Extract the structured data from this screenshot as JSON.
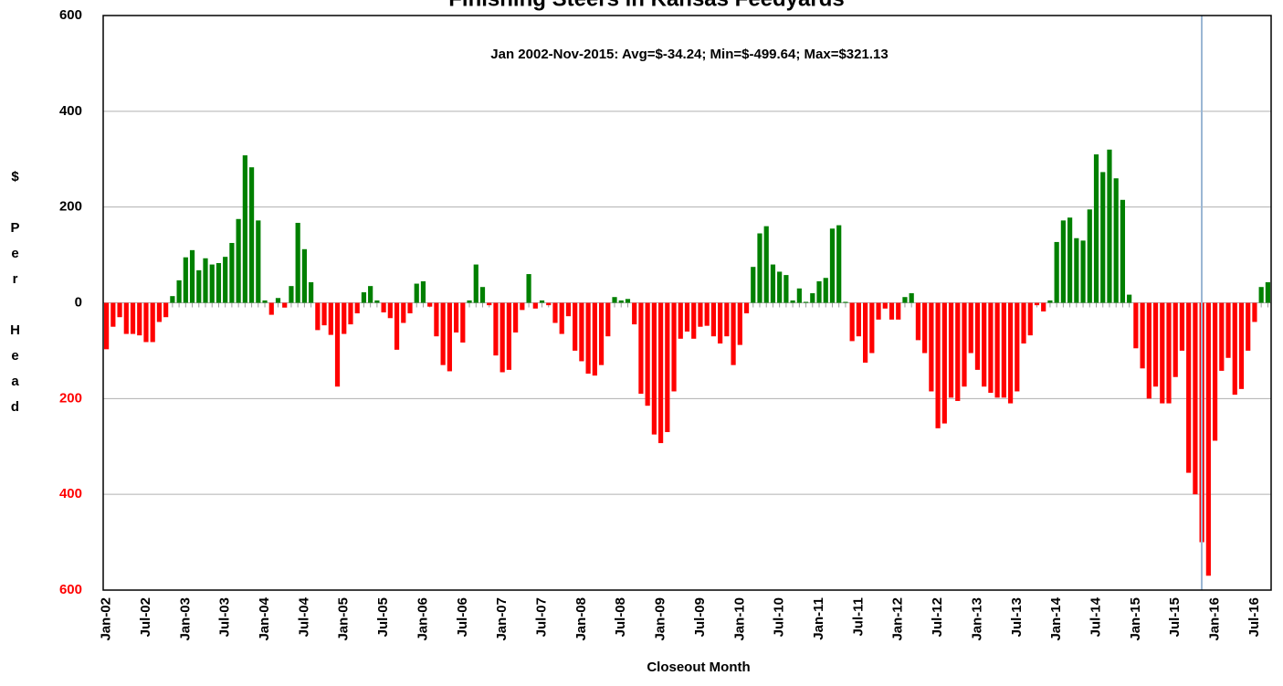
{
  "chart_data": {
    "type": "bar",
    "title": "Finishing Steers in Kansas Feedyards",
    "annotation": "Jan 2002-Nov-2015:  Avg=$-34.24; Min=$-499.64; Max=$321.13",
    "y_label": "$ Per Head",
    "x_label": "Closeout Month",
    "categories": [
      "Jan-02",
      null,
      null,
      null,
      null,
      null,
      "Jul-02",
      null,
      null,
      null,
      null,
      null,
      "Jan-03",
      null,
      null,
      null,
      null,
      null,
      "Jul-03",
      null,
      null,
      null,
      null,
      null,
      "Jan-04",
      null,
      null,
      null,
      null,
      null,
      "Jul-04",
      null,
      null,
      null,
      null,
      null,
      "Jan-05",
      null,
      null,
      null,
      null,
      null,
      "Jul-05",
      null,
      null,
      null,
      null,
      null,
      "Jan-06",
      null,
      null,
      null,
      null,
      null,
      "Jul-06",
      null,
      null,
      null,
      null,
      null,
      "Jan-07",
      null,
      null,
      null,
      null,
      null,
      "Jul-07",
      null,
      null,
      null,
      null,
      null,
      "Jan-08",
      null,
      null,
      null,
      null,
      null,
      "Jul-08",
      null,
      null,
      null,
      null,
      null,
      "Jan-09",
      null,
      null,
      null,
      null,
      null,
      "Jul-09",
      null,
      null,
      null,
      null,
      null,
      "Jan-10",
      null,
      null,
      null,
      null,
      null,
      "Jul-10",
      null,
      null,
      null,
      null,
      null,
      "Jan-11",
      null,
      null,
      null,
      null,
      null,
      "Jul-11",
      null,
      null,
      null,
      null,
      null,
      "Jan-12",
      null,
      null,
      null,
      null,
      null,
      "Jul-12",
      null,
      null,
      null,
      null,
      null,
      "Jan-13",
      null,
      null,
      null,
      null,
      null,
      "Jul-13",
      null,
      null,
      null,
      null,
      null,
      "Jan-14",
      null,
      null,
      null,
      null,
      null,
      "Jul-14",
      null,
      null,
      null,
      null,
      null,
      "Jan-15",
      null,
      null,
      null,
      null,
      null,
      "Jul-15",
      null,
      null,
      null,
      null,
      null,
      "Jan-16",
      null,
      null,
      null,
      null,
      null,
      "Jul-16",
      null,
      null
    ],
    "values": [
      -97,
      -50,
      -30,
      -65,
      -65,
      -68,
      -82,
      -82,
      -40,
      -30,
      14,
      47,
      95,
      110,
      68,
      93,
      80,
      83,
      96,
      125,
      175,
      308,
      283,
      172,
      5,
      -25,
      10,
      -10,
      35,
      167,
      112,
      43,
      -57,
      -47,
      -67,
      -175,
      -65,
      -45,
      -22,
      22,
      35,
      5,
      -20,
      -32,
      -98,
      -42,
      -22,
      40,
      45,
      -8,
      -70,
      -130,
      -143,
      -62,
      -83,
      5,
      80,
      33,
      -5,
      -110,
      -145,
      -140,
      -62,
      -15,
      60,
      -12,
      5,
      -5,
      -42,
      -65,
      -28,
      -100,
      -122,
      -148,
      -152,
      -130,
      -70,
      12,
      5,
      8,
      -45,
      -190,
      -215,
      -275,
      -293,
      -270,
      -185,
      -75,
      -60,
      -75,
      -50,
      -48,
      -70,
      -85,
      -70,
      -130,
      -88,
      -22,
      75,
      145,
      160,
      80,
      65,
      58,
      5,
      30,
      2,
      20,
      45,
      52,
      155,
      162,
      2,
      -80,
      -70,
      -125,
      -105,
      -35,
      -12,
      -35,
      -35,
      12,
      20,
      -78,
      -105,
      -185,
      -262,
      -252,
      -198,
      -205,
      -175,
      -105,
      -140,
      -175,
      -188,
      -198,
      -198,
      -210,
      -185,
      -85,
      -68,
      -5,
      -18,
      5,
      127,
      172,
      178,
      135,
      130,
      195,
      310,
      273,
      320,
      260,
      215,
      17,
      -95,
      -137,
      -200,
      -175,
      -210,
      -210,
      -155,
      -100,
      -355,
      -400,
      -500,
      -570,
      -288,
      -142,
      -115,
      -192,
      -180,
      -100,
      -40,
      33,
      43
    ],
    "positive_color": "#008000",
    "negative_color": "#ff0000",
    "negative_tick_color": "#ff0000",
    "ylim": [
      -600,
      600
    ],
    "yticks": [
      {
        "value": -600,
        "label": "600"
      },
      {
        "value": -400,
        "label": "400"
      },
      {
        "value": -200,
        "label": "200"
      },
      0,
      200,
      400,
      600
    ],
    "grid": true
  }
}
